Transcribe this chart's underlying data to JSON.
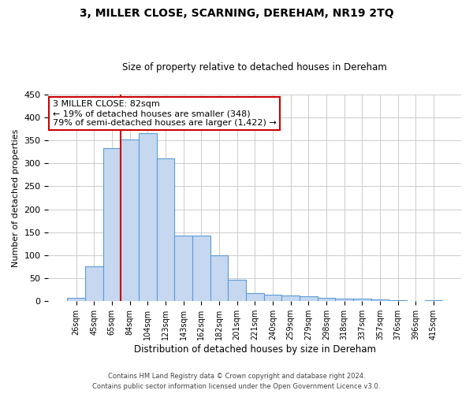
{
  "title": "3, MILLER CLOSE, SCARNING, DEREHAM, NR19 2TQ",
  "subtitle": "Size of property relative to detached houses in Dereham",
  "xlabel": "Distribution of detached houses by size in Dereham",
  "ylabel": "Number of detached properties",
  "bar_labels": [
    "26sqm",
    "45sqm",
    "65sqm",
    "84sqm",
    "104sqm",
    "123sqm",
    "143sqm",
    "162sqm",
    "182sqm",
    "201sqm",
    "221sqm",
    "240sqm",
    "259sqm",
    "279sqm",
    "298sqm",
    "318sqm",
    "337sqm",
    "357sqm",
    "376sqm",
    "396sqm",
    "415sqm"
  ],
  "bar_heights": [
    7,
    76,
    333,
    352,
    366,
    310,
    142,
    142,
    100,
    46,
    17,
    14,
    12,
    11,
    8,
    5,
    5,
    4,
    2,
    1,
    2
  ],
  "bar_color": "#c5d8f0",
  "bar_edge_color": "#5b9bd5",
  "marker_bar_index": 3,
  "marker_label": "3 MILLER CLOSE: 82sqm",
  "marker_pct_smaller": "19% of detached houses are smaller (348)",
  "marker_pct_larger": "79% of semi-detached houses are larger (1,422)",
  "marker_line_color": "#cc0000",
  "annotation_box_edge": "#cc0000",
  "ylim": [
    0,
    450
  ],
  "yticks": [
    0,
    50,
    100,
    150,
    200,
    250,
    300,
    350,
    400,
    450
  ],
  "footer1": "Contains HM Land Registry data © Crown copyright and database right 2024.",
  "footer2": "Contains public sector information licensed under the Open Government Licence v3.0.",
  "bg_color": "#ffffff",
  "grid_color": "#cccccc"
}
